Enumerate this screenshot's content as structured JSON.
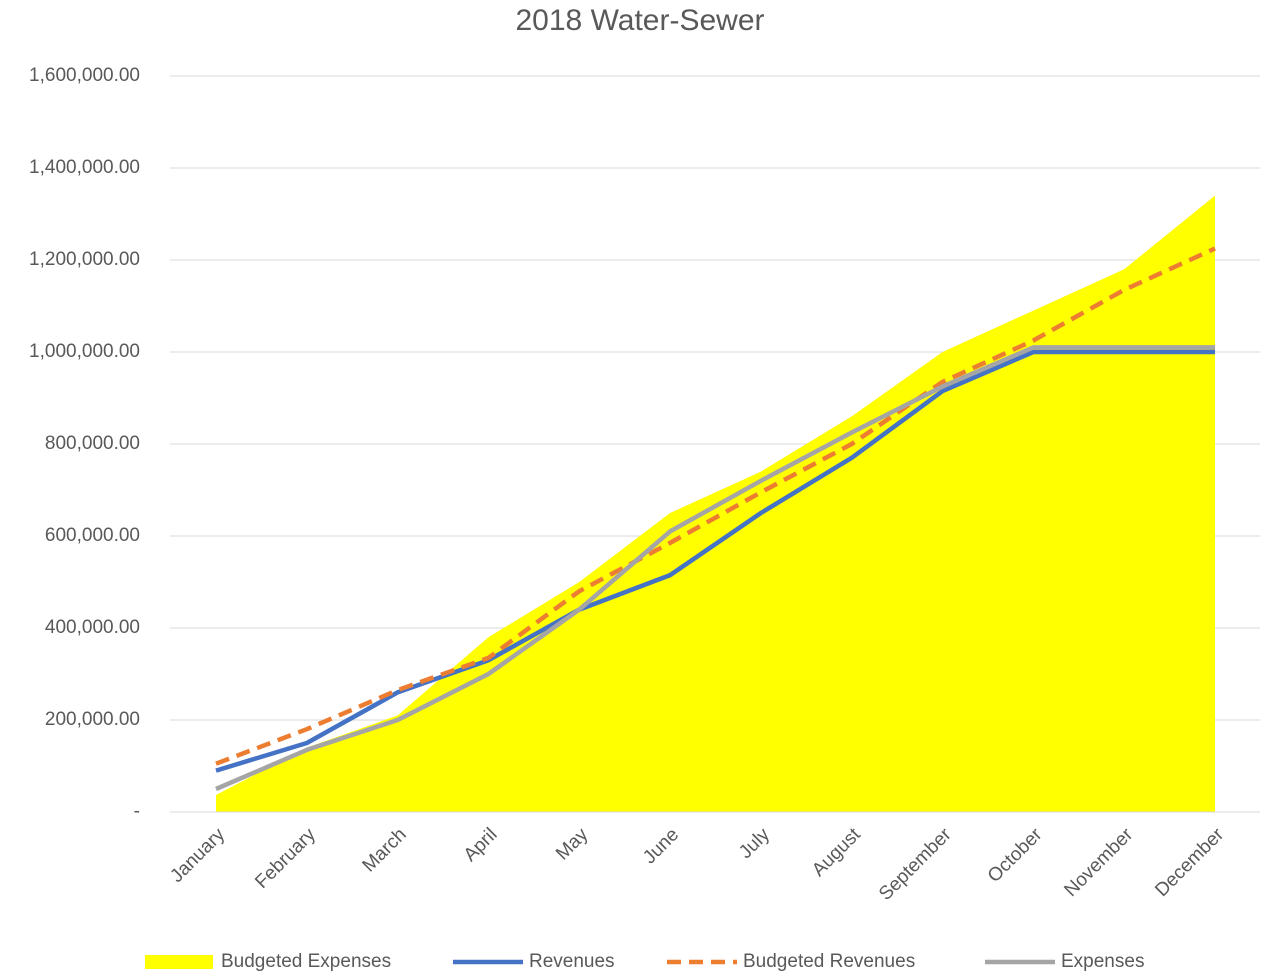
{
  "chart_data": {
    "type": "line",
    "title": "2018 Water-Sewer",
    "categories": [
      "January",
      "February",
      "March",
      "April",
      "May",
      "June",
      "July",
      "August",
      "September",
      "October",
      "November",
      "December"
    ],
    "series": [
      {
        "name": "Budgeted Expenses",
        "kind": "area",
        "color": "#ffff00",
        "values": [
          37000,
          140000,
          210000,
          380000,
          500000,
          650000,
          740000,
          860000,
          1000000,
          1090000,
          1180000,
          1340000
        ]
      },
      {
        "name": "Revenues",
        "color": "#4472c4",
        "values": [
          90000,
          150000,
          260000,
          330000,
          440000,
          515000,
          650000,
          770000,
          915000,
          1000000,
          1000000,
          1000000
        ]
      },
      {
        "name": "Budgeted Revenues",
        "color": "#ed7d31",
        "dashed": true,
        "values": [
          105000,
          180000,
          265000,
          335000,
          480000,
          585000,
          695000,
          800000,
          935000,
          1025000,
          1135000,
          1225000
        ]
      },
      {
        "name": "Expenses",
        "color": "#a5a5a5",
        "values": [
          50000,
          135000,
          200000,
          300000,
          440000,
          610000,
          720000,
          825000,
          925000,
          1010000,
          1010000,
          1010000
        ]
      }
    ],
    "ylim": [
      0,
      1600000
    ],
    "yticks": [
      {
        "value": 0,
        "label": "-"
      },
      {
        "value": 200000,
        "label": "200,000.00"
      },
      {
        "value": 400000,
        "label": "400,000.00"
      },
      {
        "value": 600000,
        "label": "600,000.00"
      },
      {
        "value": 800000,
        "label": "800,000.00"
      },
      {
        "value": 1000000,
        "label": "1,000,000.00"
      },
      {
        "value": 1200000,
        "label": "1,200,000.00"
      },
      {
        "value": 1400000,
        "label": "1,400,000.00"
      },
      {
        "value": 1600000,
        "label": "1,600,000.00"
      }
    ],
    "grid": true,
    "legend": "bottom"
  }
}
